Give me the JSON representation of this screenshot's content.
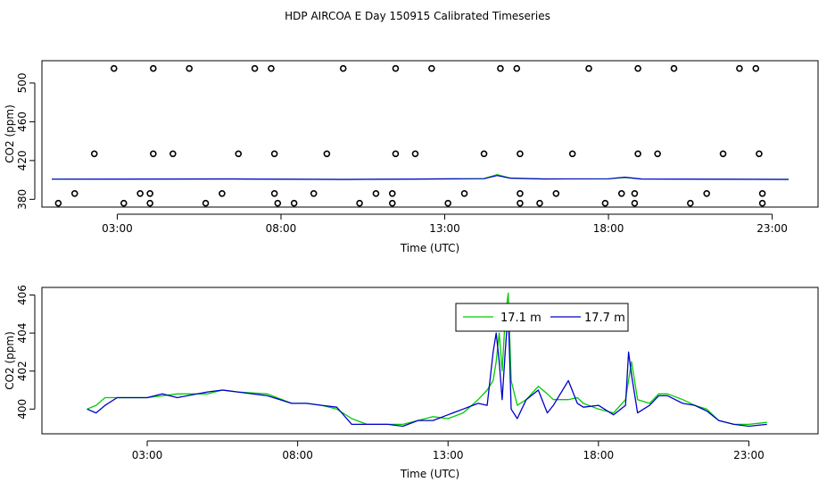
{
  "title": "HDP AIRCOA E  Day 150915  Calibrated Timeseries",
  "chart_data": [
    {
      "type": "scatter",
      "xlabel": "Time (UTC)",
      "ylabel": "CO2 (ppm)",
      "xlim": [
        0.7,
        24.4
      ],
      "ylim": [
        372,
        523
      ],
      "xticks": [
        3,
        8,
        13,
        18,
        23
      ],
      "xtick_labels": [
        "03:00",
        "08:00",
        "13:00",
        "18:00",
        "23:00"
      ],
      "yticks": [
        380,
        420,
        460,
        500
      ],
      "grid": false,
      "points": [
        {
          "x": 1.2,
          "y": 376
        },
        {
          "x": 1.7,
          "y": 386
        },
        {
          "x": 2.3,
          "y": 427
        },
        {
          "x": 2.9,
          "y": 515
        },
        {
          "x": 3.2,
          "y": 376
        },
        {
          "x": 3.7,
          "y": 386
        },
        {
          "x": 4.0,
          "y": 376
        },
        {
          "x": 4.0,
          "y": 386
        },
        {
          "x": 4.1,
          "y": 427
        },
        {
          "x": 4.1,
          "y": 515
        },
        {
          "x": 4.7,
          "y": 427
        },
        {
          "x": 5.2,
          "y": 515
        },
        {
          "x": 5.7,
          "y": 376
        },
        {
          "x": 6.2,
          "y": 386
        },
        {
          "x": 6.7,
          "y": 427
        },
        {
          "x": 7.2,
          "y": 515
        },
        {
          "x": 7.7,
          "y": 515
        },
        {
          "x": 7.8,
          "y": 427
        },
        {
          "x": 7.8,
          "y": 386
        },
        {
          "x": 7.9,
          "y": 376
        },
        {
          "x": 8.4,
          "y": 376
        },
        {
          "x": 9.0,
          "y": 386
        },
        {
          "x": 9.4,
          "y": 427
        },
        {
          "x": 9.9,
          "y": 515
        },
        {
          "x": 10.4,
          "y": 376
        },
        {
          "x": 10.9,
          "y": 386
        },
        {
          "x": 11.4,
          "y": 376
        },
        {
          "x": 11.4,
          "y": 386
        },
        {
          "x": 11.5,
          "y": 427
        },
        {
          "x": 11.5,
          "y": 515
        },
        {
          "x": 12.1,
          "y": 427
        },
        {
          "x": 12.6,
          "y": 515
        },
        {
          "x": 13.1,
          "y": 376
        },
        {
          "x": 13.6,
          "y": 386
        },
        {
          "x": 14.2,
          "y": 427
        },
        {
          "x": 14.7,
          "y": 515
        },
        {
          "x": 15.2,
          "y": 515
        },
        {
          "x": 15.3,
          "y": 427
        },
        {
          "x": 15.3,
          "y": 386
        },
        {
          "x": 15.3,
          "y": 376
        },
        {
          "x": 15.9,
          "y": 376
        },
        {
          "x": 16.4,
          "y": 386
        },
        {
          "x": 16.9,
          "y": 427
        },
        {
          "x": 17.4,
          "y": 515
        },
        {
          "x": 17.9,
          "y": 376
        },
        {
          "x": 18.4,
          "y": 386
        },
        {
          "x": 18.8,
          "y": 376
        },
        {
          "x": 18.8,
          "y": 386
        },
        {
          "x": 18.9,
          "y": 427
        },
        {
          "x": 18.9,
          "y": 515
        },
        {
          "x": 19.5,
          "y": 427
        },
        {
          "x": 20.0,
          "y": 515
        },
        {
          "x": 20.5,
          "y": 376
        },
        {
          "x": 21.0,
          "y": 386
        },
        {
          "x": 21.5,
          "y": 427
        },
        {
          "x": 22.0,
          "y": 515
        },
        {
          "x": 22.5,
          "y": 515
        },
        {
          "x": 22.6,
          "y": 427
        },
        {
          "x": 22.7,
          "y": 386
        },
        {
          "x": 22.7,
          "y": 376
        }
      ],
      "series": [
        {
          "name": "17.1 m",
          "color": "#00cc00",
          "values": [
            [
              1.0,
              400.8
            ],
            [
              6.5,
              401.0
            ],
            [
              10.0,
              400.5
            ],
            [
              13.5,
              401.2
            ],
            [
              14.2,
              401.5
            ],
            [
              14.6,
              405.5
            ],
            [
              15.0,
              402.0
            ],
            [
              16.0,
              401.0
            ],
            [
              18.0,
              401.2
            ],
            [
              18.5,
              402.5
            ],
            [
              19.0,
              401.0
            ],
            [
              23.5,
              400.5
            ]
          ]
        },
        {
          "name": "17.7 m",
          "color": "#0000cc",
          "values": [
            [
              1.0,
              400.8
            ],
            [
              6.5,
              401.0
            ],
            [
              10.0,
              400.5
            ],
            [
              13.5,
              401.2
            ],
            [
              14.2,
              401.3
            ],
            [
              14.6,
              404.5
            ],
            [
              15.0,
              401.8
            ],
            [
              16.0,
              401.0
            ],
            [
              18.0,
              401.2
            ],
            [
              18.5,
              402.8
            ],
            [
              19.0,
              401.0
            ],
            [
              23.5,
              400.5
            ]
          ]
        }
      ]
    },
    {
      "type": "line",
      "xlabel": "Time (UTC)",
      "ylabel": "CO2 (ppm)",
      "xlim": [
        -0.5,
        25.3
      ],
      "ylim": [
        398.7,
        406.4
      ],
      "xticks": [
        3,
        8,
        13,
        18,
        23
      ],
      "xtick_labels": [
        "03:00",
        "08:00",
        "13:00",
        "18:00",
        "23:00"
      ],
      "yticks": [
        400,
        402,
        404,
        406
      ],
      "grid": false,
      "legend": "top-center",
      "series": [
        {
          "name": "17.1 m",
          "color": "#00cc00",
          "values": [
            [
              1.0,
              400.0
            ],
            [
              1.3,
              400.2
            ],
            [
              1.6,
              400.6
            ],
            [
              2.0,
              400.6
            ],
            [
              3.0,
              400.6
            ],
            [
              4.0,
              400.8
            ],
            [
              5.0,
              400.8
            ],
            [
              5.5,
              401.0
            ],
            [
              6.0,
              400.9
            ],
            [
              7.0,
              400.8
            ],
            [
              7.8,
              400.3
            ],
            [
              8.3,
              400.3
            ],
            [
              8.8,
              400.2
            ],
            [
              9.3,
              400.0
            ],
            [
              9.8,
              399.5
            ],
            [
              10.3,
              399.2
            ],
            [
              11.0,
              399.2
            ],
            [
              11.5,
              399.2
            ],
            [
              12.0,
              399.4
            ],
            [
              12.5,
              399.6
            ],
            [
              13.0,
              399.5
            ],
            [
              13.5,
              399.8
            ],
            [
              14.0,
              400.5
            ],
            [
              14.3,
              401.0
            ],
            [
              14.5,
              401.5
            ],
            [
              14.6,
              402.5
            ],
            [
              14.7,
              404.0
            ],
            [
              14.8,
              402.0
            ],
            [
              14.9,
              404.8
            ],
            [
              15.0,
              406.1
            ],
            [
              15.1,
              401.5
            ],
            [
              15.3,
              400.2
            ],
            [
              15.6,
              400.5
            ],
            [
              16.0,
              401.2
            ],
            [
              16.3,
              400.8
            ],
            [
              16.5,
              400.5
            ],
            [
              17.0,
              400.5
            ],
            [
              17.3,
              400.6
            ],
            [
              17.5,
              400.3
            ],
            [
              18.0,
              400.0
            ],
            [
              18.5,
              399.8
            ],
            [
              18.9,
              400.5
            ],
            [
              19.1,
              402.5
            ],
            [
              19.3,
              400.5
            ],
            [
              19.7,
              400.3
            ],
            [
              20.0,
              400.8
            ],
            [
              20.3,
              400.8
            ],
            [
              20.8,
              400.5
            ],
            [
              21.2,
              400.2
            ],
            [
              21.6,
              400.0
            ],
            [
              22.0,
              399.4
            ],
            [
              22.5,
              399.2
            ],
            [
              23.0,
              399.2
            ],
            [
              23.6,
              399.3
            ]
          ]
        },
        {
          "name": "17.7 m",
          "color": "#0000cc",
          "values": [
            [
              1.0,
              400.0
            ],
            [
              1.3,
              399.8
            ],
            [
              1.6,
              400.2
            ],
            [
              2.0,
              400.6
            ],
            [
              3.0,
              400.6
            ],
            [
              3.5,
              400.8
            ],
            [
              4.0,
              400.6
            ],
            [
              5.0,
              400.9
            ],
            [
              5.5,
              401.0
            ],
            [
              6.0,
              400.9
            ],
            [
              7.0,
              400.7
            ],
            [
              7.8,
              400.3
            ],
            [
              8.3,
              400.3
            ],
            [
              8.8,
              400.2
            ],
            [
              9.3,
              400.1
            ],
            [
              9.8,
              399.2
            ],
            [
              10.3,
              399.2
            ],
            [
              11.0,
              399.2
            ],
            [
              11.5,
              399.1
            ],
            [
              12.0,
              399.4
            ],
            [
              12.5,
              399.4
            ],
            [
              13.0,
              399.7
            ],
            [
              13.5,
              400.0
            ],
            [
              14.0,
              400.3
            ],
            [
              14.3,
              400.2
            ],
            [
              14.5,
              403.0
            ],
            [
              14.6,
              404.0
            ],
            [
              14.7,
              402.5
            ],
            [
              14.8,
              400.5
            ],
            [
              14.9,
              403.0
            ],
            [
              15.0,
              405.2
            ],
            [
              15.1,
              400.0
            ],
            [
              15.3,
              399.5
            ],
            [
              15.6,
              400.5
            ],
            [
              16.0,
              401.0
            ],
            [
              16.3,
              399.8
            ],
            [
              16.5,
              400.2
            ],
            [
              17.0,
              401.5
            ],
            [
              17.3,
              400.3
            ],
            [
              17.5,
              400.1
            ],
            [
              18.0,
              400.2
            ],
            [
              18.5,
              399.7
            ],
            [
              18.9,
              400.2
            ],
            [
              19.0,
              403.0
            ],
            [
              19.1,
              401.8
            ],
            [
              19.3,
              399.8
            ],
            [
              19.7,
              400.2
            ],
            [
              20.0,
              400.7
            ],
            [
              20.3,
              400.7
            ],
            [
              20.8,
              400.3
            ],
            [
              21.2,
              400.2
            ],
            [
              21.6,
              399.9
            ],
            [
              22.0,
              399.4
            ],
            [
              22.5,
              399.2
            ],
            [
              23.0,
              399.1
            ],
            [
              23.6,
              399.2
            ]
          ]
        }
      ]
    }
  ]
}
